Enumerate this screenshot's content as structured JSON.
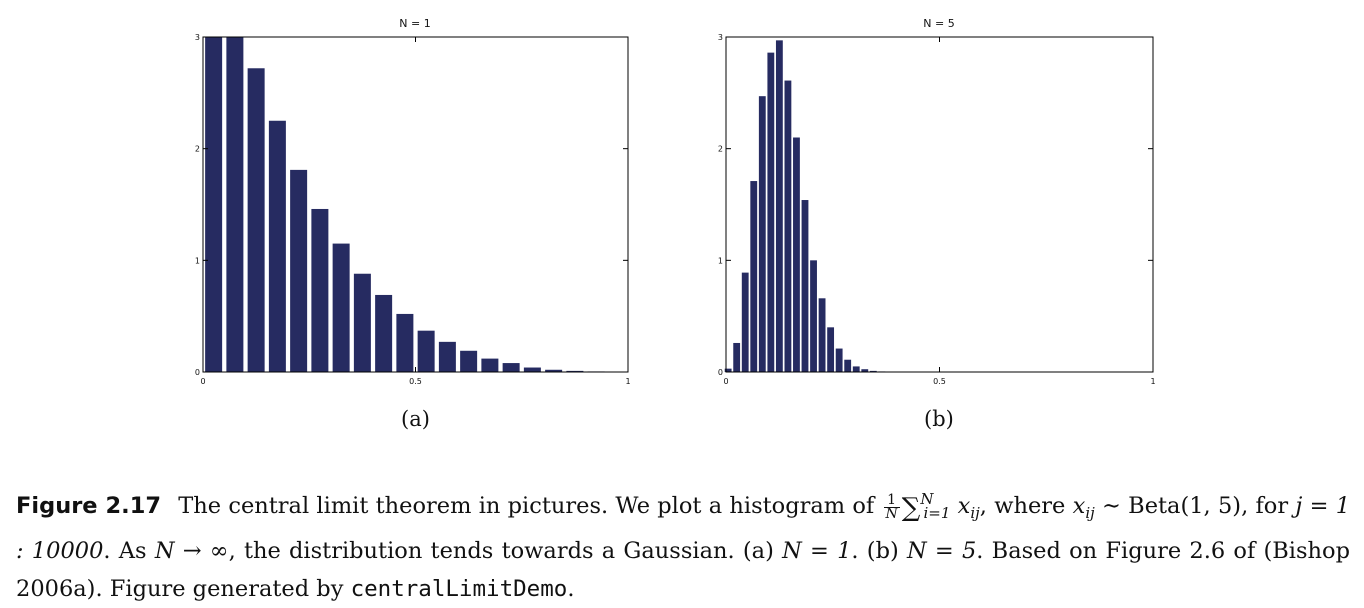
{
  "colors": {
    "bar": "#262b61",
    "axis": "#000000",
    "background": "#ffffff"
  },
  "chart_data": [
    {
      "type": "bar",
      "title": "N = 1",
      "panel_label": "(a)",
      "x": [
        0.025,
        0.075,
        0.125,
        0.175,
        0.225,
        0.275,
        0.325,
        0.375,
        0.425,
        0.475,
        0.525,
        0.575,
        0.625,
        0.675,
        0.725,
        0.775,
        0.825,
        0.875,
        0.925,
        0.975
      ],
      "values": [
        3.0,
        3.0,
        2.72,
        2.25,
        1.81,
        1.46,
        1.15,
        0.88,
        0.69,
        0.52,
        0.37,
        0.27,
        0.19,
        0.12,
        0.08,
        0.04,
        0.02,
        0.01,
        0.005,
        0.002
      ],
      "xlim": [
        0,
        1
      ],
      "ylim": [
        0,
        3
      ],
      "xticks": [
        0,
        0.5,
        1
      ],
      "xtick_labels": [
        "0",
        "0.5",
        "1"
      ],
      "yticks": [
        0,
        1,
        2,
        3
      ],
      "ytick_labels": [
        "0",
        "1",
        "2",
        "3"
      ],
      "xlabel": "",
      "ylabel": "",
      "grid": false
    },
    {
      "type": "bar",
      "title": "N = 5",
      "panel_label": "(b)",
      "x": [
        0.005,
        0.025,
        0.045,
        0.065,
        0.085,
        0.105,
        0.125,
        0.145,
        0.165,
        0.185,
        0.205,
        0.225,
        0.245,
        0.265,
        0.285,
        0.305,
        0.325,
        0.345,
        0.365,
        0.385,
        0.405
      ],
      "values": [
        0.03,
        0.26,
        0.89,
        1.71,
        2.47,
        2.86,
        2.97,
        2.61,
        2.1,
        1.54,
        1.0,
        0.66,
        0.4,
        0.21,
        0.11,
        0.05,
        0.025,
        0.01,
        0.005,
        0.002,
        0.001
      ],
      "xlim": [
        0,
        1
      ],
      "ylim": [
        0,
        3
      ],
      "xticks": [
        0,
        0.5,
        1
      ],
      "xtick_labels": [
        "0",
        "0.5",
        "1"
      ],
      "yticks": [
        0,
        1,
        2,
        3
      ],
      "ytick_labels": [
        "0",
        "1",
        "2",
        "3"
      ],
      "xlabel": "",
      "ylabel": "",
      "grid": false
    }
  ],
  "caption": {
    "label": "Figure 2.17",
    "s1": "The central limit theorem in pictures. We plot a histogram of",
    "frac_num": "1",
    "frac_den": "N",
    "sum_symbol": "∑",
    "sum_upper": "N",
    "sum_lower": "i=1",
    "var": "x",
    "var_sub": "ij",
    "s2": ", where",
    "tilde": "∼",
    "beta": "Beta(1, 5)",
    "s3": ", for",
    "j_expr": "j = 1 : 10000",
    "s4": ". As",
    "limit_expr": "N → ∞",
    "s5": ", the distribution tends towards a Gaussian. (a)",
    "n1": "N = 1",
    "s6": ". (b)",
    "n5": "N = 5",
    "s7": ". Based on Figure 2.6 of (Bishop 2006a). Figure generated by",
    "code": "centralLimitDemo",
    "s8": "."
  }
}
